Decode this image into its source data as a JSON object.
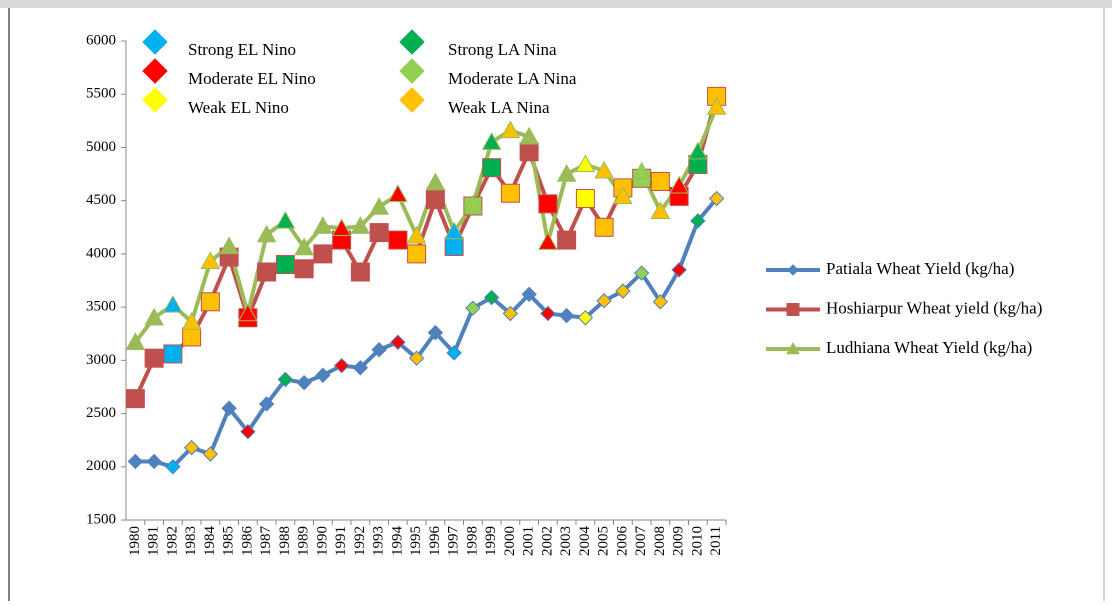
{
  "chart_data": {
    "type": "line",
    "categories": [
      "1980",
      "1981",
      "1982",
      "1983",
      "1984",
      "1985",
      "1986",
      "1987",
      "1988",
      "1989",
      "1990",
      "1991",
      "1992",
      "1993",
      "1994",
      "1995",
      "1996",
      "1997",
      "1998",
      "1999",
      "2000",
      "2001",
      "2002",
      "2003",
      "2004",
      "2005",
      "2006",
      "2007",
      "2008",
      "2009",
      "2010",
      "2011"
    ],
    "series": [
      {
        "name": "Patiala Wheat Yield (kg/ha)",
        "color": "#4f81bd",
        "marker": "diamond",
        "values": [
          2050,
          2050,
          2000,
          2180,
          2120,
          2550,
          2330,
          2590,
          2820,
          2790,
          2860,
          2950,
          2930,
          3100,
          3170,
          3020,
          3260,
          3070,
          3490,
          3590,
          3440,
          3620,
          3440,
          3420,
          3400,
          3560,
          3650,
          3820,
          3550,
          3850,
          4310,
          4520
        ]
      },
      {
        "name": "Hoshiarpur Wheat yield (kg/ha)",
        "color": "#c0504d",
        "marker": "square",
        "values": [
          2640,
          3020,
          3060,
          3220,
          3550,
          3970,
          3400,
          3830,
          3900,
          3860,
          4000,
          4130,
          3830,
          4200,
          4130,
          4000,
          4510,
          4070,
          4450,
          4810,
          4570,
          4960,
          4470,
          4130,
          4520,
          4250,
          4620,
          4710,
          4680,
          4540,
          4840,
          5480
        ]
      },
      {
        "name": "Ludhiana Wheat Yield (kg/ha)",
        "color": "#9bbb59",
        "marker": "triangle",
        "values": [
          3170,
          3400,
          3520,
          3360,
          3930,
          4070,
          3440,
          4180,
          4310,
          4060,
          4260,
          4240,
          4260,
          4440,
          4560,
          4170,
          4670,
          4210,
          4460,
          5050,
          5160,
          5100,
          4110,
          4750,
          4840,
          4780,
          4540,
          4770,
          4400,
          4640,
          4960,
          5380
        ]
      }
    ],
    "enso_classes": [
      {
        "name": "Strong EL Nino",
        "color": "#00b0f0"
      },
      {
        "name": "Moderate EL Nino",
        "color": "#ff0000"
      },
      {
        "name": "Weak EL Nino",
        "color": "#ffff00"
      },
      {
        "name": "Strong LA Nina",
        "color": "#00b050"
      },
      {
        "name": "Moderate LA Nina",
        "color": "#92d050"
      },
      {
        "name": "Weak LA Nina",
        "color": "#ffc000"
      }
    ],
    "enso_by_year": [
      null,
      null,
      0,
      5,
      5,
      null,
      1,
      null,
      3,
      null,
      null,
      1,
      null,
      null,
      1,
      5,
      null,
      0,
      4,
      3,
      5,
      null,
      1,
      null,
      2,
      5,
      5,
      4,
      5,
      1,
      3,
      5
    ],
    "ylim": [
      1500,
      6000
    ],
    "yticks": [
      1500,
      2000,
      2500,
      3000,
      3500,
      4000,
      4500,
      5000,
      5500,
      6000
    ],
    "legend": "right"
  }
}
